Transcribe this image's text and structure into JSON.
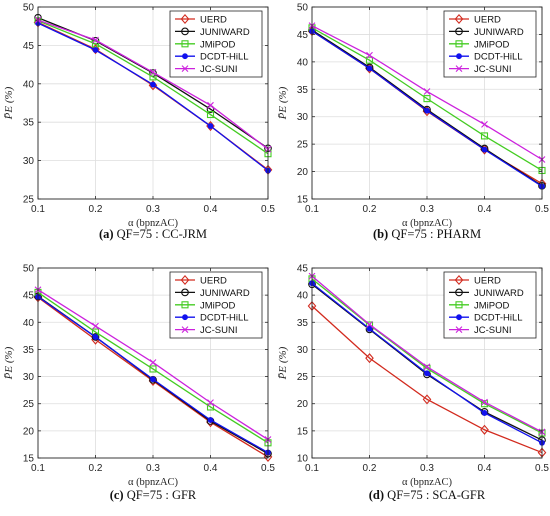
{
  "chart_data": [
    {
      "type": "line",
      "caption_letter": "(a)",
      "caption_text": "QF=75 : CC-JRM",
      "xlabel": "α (bpnzAC)",
      "ylabel": "P̄E (%)",
      "x": [
        0.1,
        0.2,
        0.3,
        0.4,
        0.5
      ],
      "xticks": [
        "0.1",
        "0.2",
        "0.3",
        "0.4",
        "0.5"
      ],
      "yticks": [
        "25",
        "30",
        "35",
        "40",
        "45",
        "50"
      ],
      "xlim": [
        0.1,
        0.5
      ],
      "ylim": [
        25,
        50
      ],
      "grid": true,
      "legend_position": "top-right",
      "series": [
        {
          "name": "UERD",
          "color": "#d22a1e",
          "marker": "diamond",
          "values": [
            48.0,
            44.5,
            39.8,
            34.5,
            28.8
          ]
        },
        {
          "name": "JUNIWARD",
          "color": "#111111",
          "marker": "circle",
          "values": [
            48.6,
            45.6,
            41.4,
            36.7,
            31.6
          ]
        },
        {
          "name": "JMiPOD",
          "color": "#44cc22",
          "marker": "square",
          "values": [
            48.2,
            45.2,
            40.9,
            36.0,
            30.9
          ]
        },
        {
          "name": "DCDT-HiLL",
          "color": "#1111ee",
          "marker": "dot",
          "values": [
            47.9,
            44.4,
            39.9,
            34.5,
            28.7
          ]
        },
        {
          "name": "JC-SUNI",
          "color": "#cc22dd",
          "marker": "x",
          "values": [
            48.3,
            45.7,
            41.5,
            37.2,
            31.5
          ]
        }
      ]
    },
    {
      "type": "line",
      "caption_letter": "(b)",
      "caption_text": "QF=75 : PHARM",
      "xlabel": "α (bpnzAC)",
      "ylabel": "P̄E (%)",
      "x": [
        0.1,
        0.2,
        0.3,
        0.4,
        0.5
      ],
      "xticks": [
        "0.1",
        "0.2",
        "0.3",
        "0.4",
        "0.5"
      ],
      "yticks": [
        "15",
        "20",
        "25",
        "30",
        "35",
        "40",
        "45",
        "50"
      ],
      "xlim": [
        0.1,
        0.5
      ],
      "ylim": [
        15,
        50
      ],
      "grid": true,
      "legend_position": "top-right",
      "series": [
        {
          "name": "UERD",
          "color": "#d22a1e",
          "marker": "diamond",
          "values": [
            45.6,
            38.8,
            31.0,
            24.0,
            17.8
          ]
        },
        {
          "name": "JUNIWARD",
          "color": "#111111",
          "marker": "circle",
          "values": [
            45.8,
            39.0,
            31.3,
            24.2,
            17.4
          ]
        },
        {
          "name": "JMiPOD",
          "color": "#44cc22",
          "marker": "square",
          "values": [
            46.2,
            40.3,
            33.3,
            26.5,
            20.2
          ]
        },
        {
          "name": "DCDT-HiLL",
          "color": "#1111ee",
          "marker": "dot",
          "values": [
            45.6,
            38.8,
            31.1,
            24.0,
            17.3
          ]
        },
        {
          "name": "JC-SUNI",
          "color": "#cc22dd",
          "marker": "x",
          "values": [
            46.6,
            41.2,
            34.6,
            28.6,
            22.2
          ]
        }
      ]
    },
    {
      "type": "line",
      "caption_letter": "(c)",
      "caption_text": "QF=75 : GFR",
      "xlabel": "α (bpnzAC)",
      "ylabel": "P̄E (%)",
      "x": [
        0.1,
        0.2,
        0.3,
        0.4,
        0.5
      ],
      "xticks": [
        "0.1",
        "0.2",
        "0.3",
        "0.4",
        "0.5"
      ],
      "yticks": [
        "15",
        "20",
        "25",
        "30",
        "35",
        "40",
        "45",
        "50"
      ],
      "xlim": [
        0.1,
        0.5
      ],
      "ylim": [
        15,
        50
      ],
      "grid": true,
      "legend_position": "top-right",
      "series": [
        {
          "name": "UERD",
          "color": "#d22a1e",
          "marker": "diamond",
          "values": [
            44.6,
            36.8,
            29.2,
            21.6,
            15.2
          ]
        },
        {
          "name": "JUNIWARD",
          "color": "#111111",
          "marker": "circle",
          "values": [
            44.8,
            37.3,
            29.4,
            21.8,
            15.8
          ]
        },
        {
          "name": "JMiPOD",
          "color": "#44cc22",
          "marker": "square",
          "values": [
            45.5,
            38.2,
            31.4,
            24.4,
            17.8
          ]
        },
        {
          "name": "DCDT-HiLL",
          "color": "#1111ee",
          "marker": "dot",
          "values": [
            44.7,
            37.3,
            29.5,
            22.0,
            16.0
          ]
        },
        {
          "name": "JC-SUNI",
          "color": "#cc22dd",
          "marker": "x",
          "values": [
            46.0,
            39.3,
            32.6,
            25.2,
            18.4
          ]
        }
      ]
    },
    {
      "type": "line",
      "caption_letter": "(d)",
      "caption_text": "QF=75 : SCA-GFR",
      "xlabel": "α (bpnzAC)",
      "ylabel": "P̄E (%)",
      "x": [
        0.1,
        0.2,
        0.3,
        0.4,
        0.5
      ],
      "xticks": [
        "0.1",
        "0.2",
        "0.3",
        "0.4",
        "0.5"
      ],
      "yticks": [
        "10",
        "15",
        "20",
        "25",
        "30",
        "35",
        "40",
        "45"
      ],
      "xlim": [
        0.1,
        0.5
      ],
      "ylim": [
        10,
        45
      ],
      "grid": true,
      "legend_position": "top-right",
      "series": [
        {
          "name": "UERD",
          "color": "#d22a1e",
          "marker": "diamond",
          "values": [
            38.0,
            28.4,
            20.8,
            15.2,
            11.0
          ]
        },
        {
          "name": "JUNIWARD",
          "color": "#111111",
          "marker": "circle",
          "values": [
            42.0,
            33.7,
            25.4,
            18.5,
            13.3
          ]
        },
        {
          "name": "JMiPOD",
          "color": "#44cc22",
          "marker": "square",
          "values": [
            43.0,
            34.5,
            26.5,
            20.0,
            14.6
          ]
        },
        {
          "name": "DCDT-HiLL",
          "color": "#1111ee",
          "marker": "dot",
          "values": [
            42.2,
            33.8,
            25.6,
            18.3,
            12.8
          ]
        },
        {
          "name": "JC-SUNI",
          "color": "#cc22dd",
          "marker": "x",
          "values": [
            43.5,
            34.6,
            26.8,
            20.3,
            14.8
          ]
        }
      ]
    }
  ]
}
